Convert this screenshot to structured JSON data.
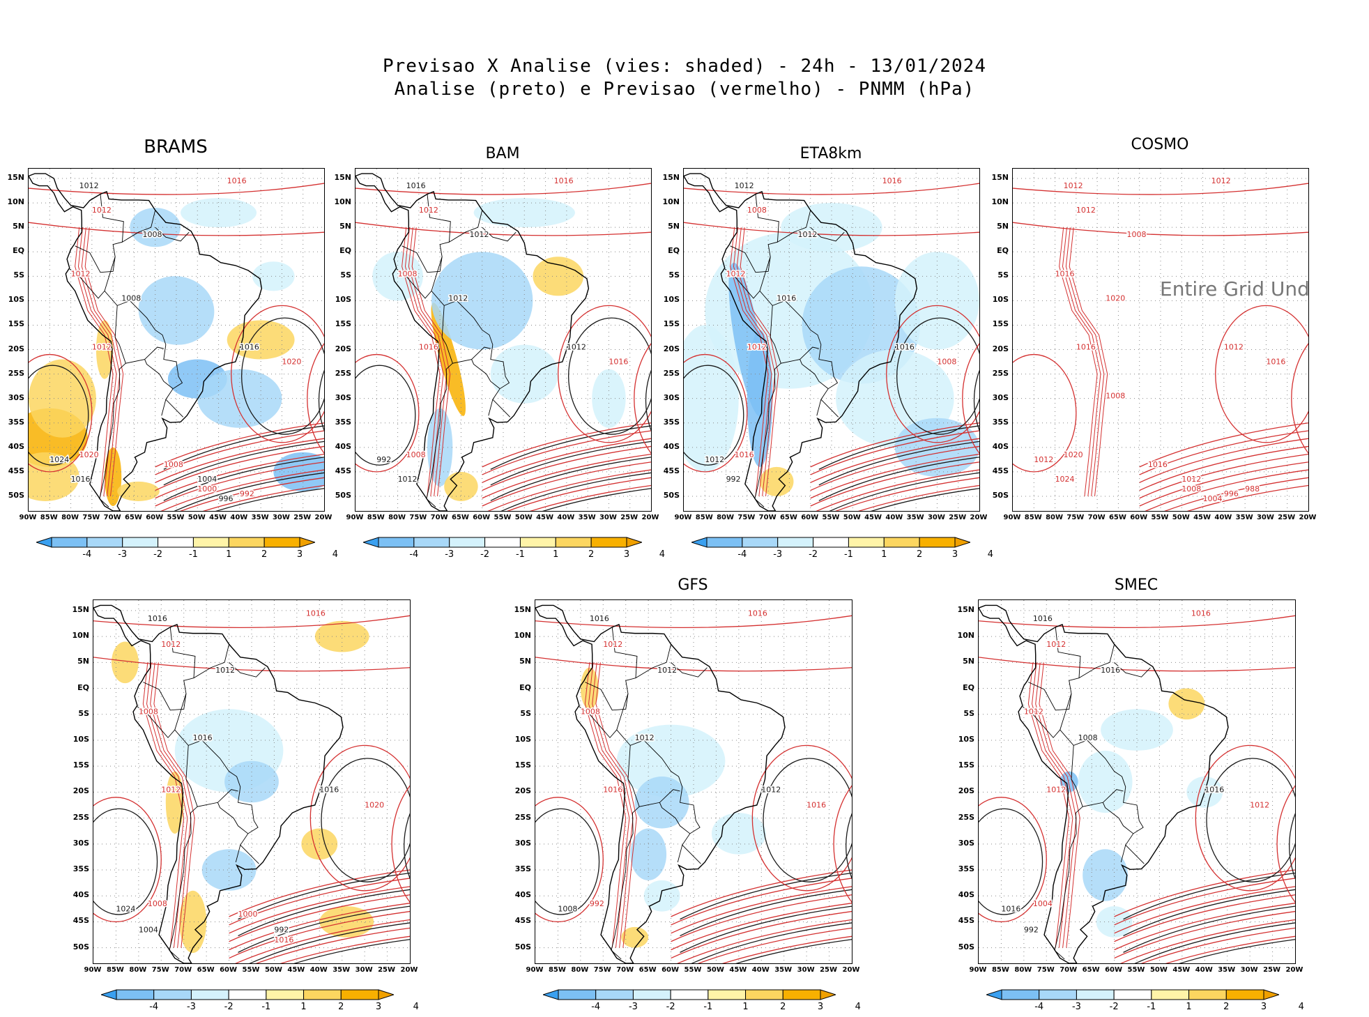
{
  "title": {
    "line1": "Previsao X Analise (vies: shaded) - 24h - 13/01/2024",
    "line2": "Analise (preto) e Previsao (vermelho) - PNMM (hPa)"
  },
  "axes": {
    "lat_labels": [
      "15N",
      "10N",
      "5N",
      "EQ",
      "5S",
      "10S",
      "15S",
      "20S",
      "25S",
      "30S",
      "35S",
      "40S",
      "45S",
      "50S"
    ],
    "lon_labels": [
      "90W",
      "85W",
      "80W",
      "75W",
      "70W",
      "65W",
      "60W",
      "55W",
      "50W",
      "45W",
      "40W",
      "35W",
      "30W",
      "25W",
      "20W"
    ]
  },
  "colorbar": {
    "labels": [
      "-4",
      "-3",
      "-2",
      "-1",
      "1",
      "2",
      "3",
      "4"
    ],
    "colors": [
      "#3aa0f0",
      "#7cc0f4",
      "#a8d8f8",
      "#d4f2fc",
      "#ffffff",
      "#fff4a8",
      "#fcd660",
      "#f8b000",
      "#f0a000"
    ]
  },
  "colors": {
    "analysis": "#1a1a1a",
    "forecast": "#d43030"
  },
  "panels": [
    {
      "key": "brams",
      "title": "BRAMS",
      "undefined": ""
    },
    {
      "key": "bam",
      "title": "BAM",
      "undefined": ""
    },
    {
      "key": "eta",
      "title": "ETA8km",
      "undefined": ""
    },
    {
      "key": "cosmo",
      "title": "COSMO",
      "undefined": "Entire Grid Und"
    },
    {
      "key": "p5",
      "title": "",
      "undefined": ""
    },
    {
      "key": "gfs",
      "title": "GFS",
      "undefined": ""
    },
    {
      "key": "smec",
      "title": "SMEC",
      "undefined": ""
    }
  ],
  "isobar_labels": {
    "brams": [
      "1016",
      "1012",
      "1012",
      "1008",
      "1012",
      "1008",
      "1012",
      "1016",
      "1020",
      "1024",
      "1020",
      "1016",
      "1008",
      "1004",
      "1000",
      "996",
      "992"
    ],
    "bam": [
      "1016",
      "1016",
      "1012",
      "1012",
      "1008",
      "1012",
      "1016",
      "1012",
      "1016",
      "992",
      "1008",
      "1012"
    ],
    "eta": [
      "1016",
      "1012",
      "1008",
      "1012",
      "1012",
      "1016",
      "1012",
      "1016",
      "1008",
      "1012",
      "1016",
      "992"
    ],
    "cosmo": [
      "1012",
      "1012",
      "1012",
      "1008",
      "1016",
      "1020",
      "1016",
      "1012",
      "1016",
      "1012",
      "1020",
      "1024",
      "1016",
      "1012",
      "1008",
      "1004",
      "996",
      "988",
      "1008"
    ],
    "p5": [
      "1016",
      "1016",
      "1012",
      "1012",
      "1008",
      "1016",
      "1012",
      "1016",
      "1020",
      "1024",
      "1008",
      "1004",
      "1000",
      "992",
      "1016"
    ],
    "gfs": [
      "1016",
      "1016",
      "1012",
      "1012",
      "1008",
      "1012",
      "1016",
      "1012",
      "1016",
      "1008",
      "992"
    ],
    "smec": [
      "1016",
      "1016",
      "1012",
      "1016",
      "1012",
      "1008",
      "1012",
      "1016",
      "1012",
      "1016",
      "1004",
      "992"
    ]
  }
}
